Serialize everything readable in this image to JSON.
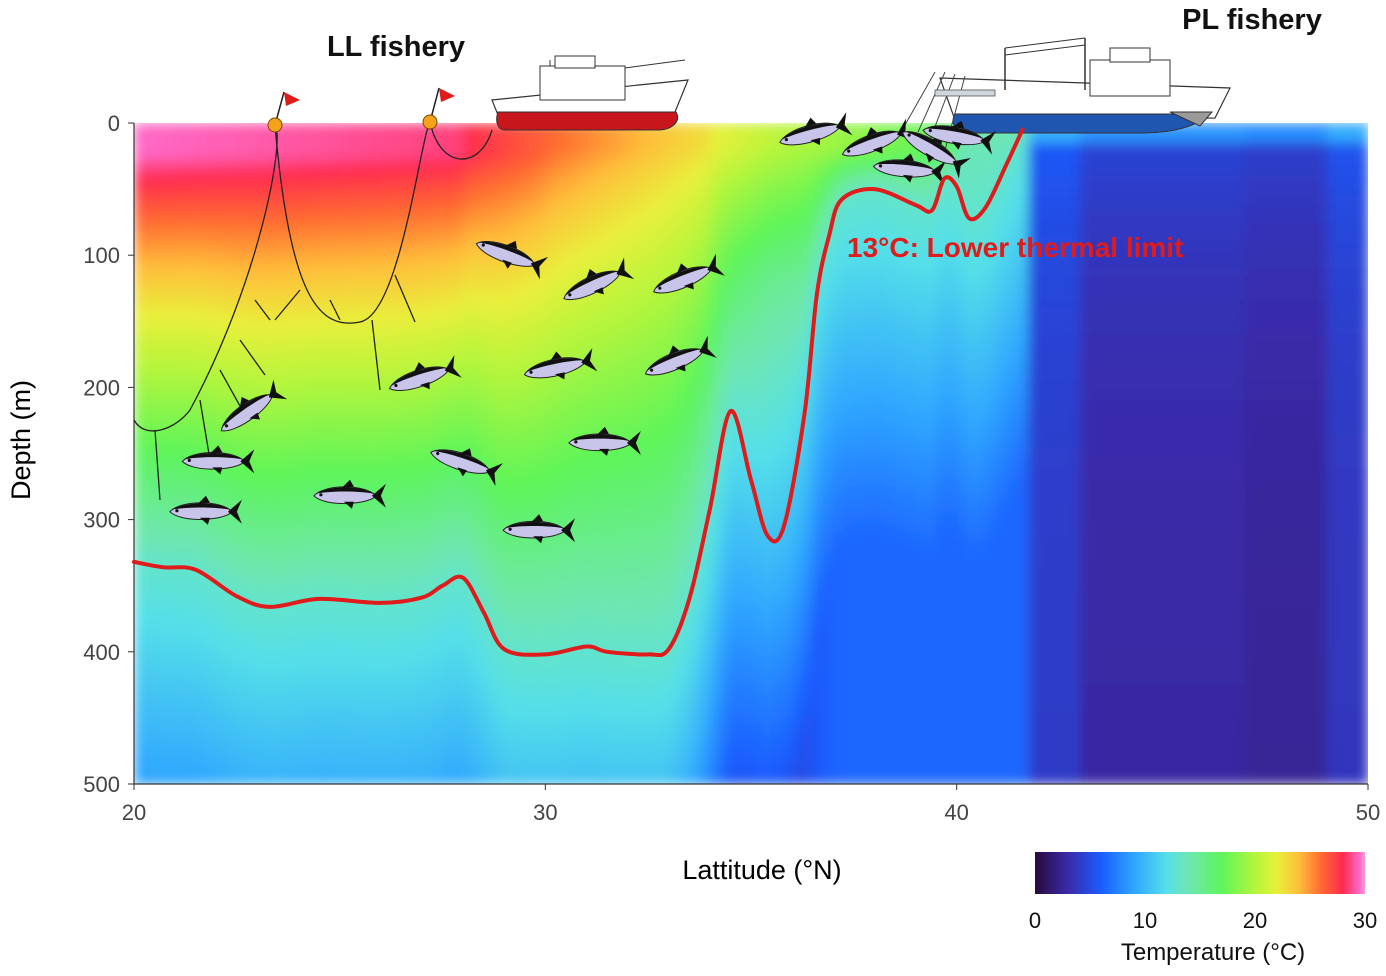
{
  "chart_data": {
    "type": "heatmap",
    "title": "",
    "xlabel": "Lattitude (°N)",
    "ylabel": "Depth (m)",
    "xlim": [
      20,
      50
    ],
    "ylim": [
      0,
      500
    ],
    "y_reversed": true,
    "xticks": [
      20,
      30,
      40,
      50
    ],
    "yticks": [
      0,
      100,
      200,
      300,
      400,
      500
    ],
    "colorbar": {
      "title": "Temperature (°C)",
      "range": [
        0,
        30
      ],
      "ticks": [
        0,
        10,
        20,
        30
      ],
      "placement": "bottom-right",
      "stops": [
        {
          "value": 0,
          "color": "#2a0a3c"
        },
        {
          "value": 3,
          "color": "#3a2aa8"
        },
        {
          "value": 6,
          "color": "#1a5cff"
        },
        {
          "value": 9,
          "color": "#2fa6ff"
        },
        {
          "value": 12,
          "color": "#56e0e8"
        },
        {
          "value": 14,
          "color": "#6fe6b0"
        },
        {
          "value": 17,
          "color": "#5ef55a"
        },
        {
          "value": 20,
          "color": "#b4f53c"
        },
        {
          "value": 22,
          "color": "#e8f03a"
        },
        {
          "value": 24,
          "color": "#ffbe3a"
        },
        {
          "value": 26,
          "color": "#ff6a32"
        },
        {
          "value": 28,
          "color": "#ff2a50"
        },
        {
          "value": 29.5,
          "color": "#ff6ac8"
        },
        {
          "value": 30,
          "color": "#ff9ad8"
        }
      ]
    },
    "series": [
      {
        "name": "13°C: Lower thermal limit",
        "color": "#e01b1b",
        "points": [
          [
            20,
            332
          ],
          [
            20.7,
            336
          ],
          [
            21.5,
            338
          ],
          [
            22.5,
            358
          ],
          [
            23.3,
            366
          ],
          [
            24.5,
            360
          ],
          [
            26,
            363
          ],
          [
            27.0,
            359
          ],
          [
            27.5,
            350
          ],
          [
            28.0,
            344
          ],
          [
            28.5,
            370
          ],
          [
            29.0,
            398
          ],
          [
            30.0,
            402
          ],
          [
            31.0,
            396
          ],
          [
            31.5,
            400
          ],
          [
            32.5,
            402
          ],
          [
            33.0,
            398
          ],
          [
            33.5,
            360
          ],
          [
            34.0,
            292
          ],
          [
            34.5,
            218
          ],
          [
            35.0,
            270
          ],
          [
            35.4,
            312
          ],
          [
            35.8,
            305
          ],
          [
            36.3,
            220
          ],
          [
            36.6,
            130
          ],
          [
            36.9,
            85
          ],
          [
            37.2,
            58
          ],
          [
            38.0,
            50
          ],
          [
            39.0,
            62
          ],
          [
            39.4,
            66
          ],
          [
            39.7,
            42
          ],
          [
            40.0,
            48
          ],
          [
            40.3,
            72
          ],
          [
            40.7,
            64
          ],
          [
            41.2,
            32
          ],
          [
            41.6,
            5
          ]
        ]
      }
    ],
    "annotations": {
      "ll_fishery": "LL fishery",
      "pl_fishery": "PL fishery",
      "thermal_limit": "13°C: Lower thermal limit"
    },
    "grid": false,
    "legend": "none"
  },
  "fish": [
    {
      "lat": 29.1,
      "depth": 100,
      "rot": 20
    },
    {
      "lat": 31.2,
      "depth": 122,
      "rot": -25
    },
    {
      "lat": 33.4,
      "depth": 118,
      "rot": -22
    },
    {
      "lat": 22.8,
      "depth": 218,
      "rot": -35
    },
    {
      "lat": 27.0,
      "depth": 193,
      "rot": -18
    },
    {
      "lat": 30.3,
      "depth": 185,
      "rot": -12
    },
    {
      "lat": 33.2,
      "depth": 180,
      "rot": -22
    },
    {
      "lat": 22.0,
      "depth": 256,
      "rot": 0
    },
    {
      "lat": 28.0,
      "depth": 257,
      "rot": 18
    },
    {
      "lat": 31.4,
      "depth": 242,
      "rot": 0
    },
    {
      "lat": 25.2,
      "depth": 282,
      "rot": 0
    },
    {
      "lat": 21.7,
      "depth": 294,
      "rot": 0
    },
    {
      "lat": 29.8,
      "depth": 308,
      "rot": 0
    },
    {
      "lat": 36.5,
      "depth": 8,
      "rot": -15
    },
    {
      "lat": 38.0,
      "depth": 15,
      "rot": -20
    },
    {
      "lat": 38.8,
      "depth": 35,
      "rot": 5
    },
    {
      "lat": 39.4,
      "depth": 20,
      "rot": 30
    },
    {
      "lat": 40.0,
      "depth": 10,
      "rot": 10
    }
  ]
}
